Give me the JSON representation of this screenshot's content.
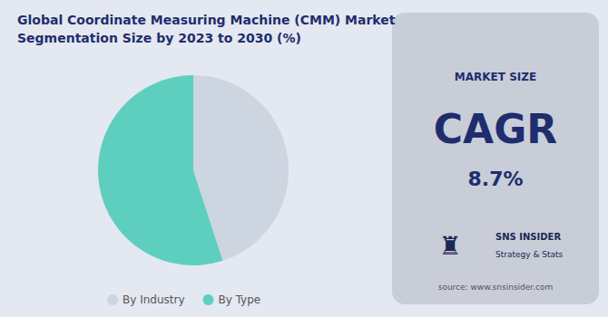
{
  "chart_data": {
    "type": "pie",
    "title": "Global Coordinate Measuring Machine (CMM) Market",
    "subtitle": "Segmentation Size by 2023 to 2030 (%)",
    "categories": [
      "By Industry",
      "By Type"
    ],
    "values": [
      45,
      55
    ],
    "colors": [
      "#cdd5e0",
      "#5ecfbf"
    ],
    "legend": "bottom",
    "annotations": [
      "MARKET SIZE",
      "CAGR",
      "8.7%",
      "♜",
      "SNS INSIDER",
      "Strategy & Stats",
      "source: www.snsinsider.com"
    ]
  }
}
